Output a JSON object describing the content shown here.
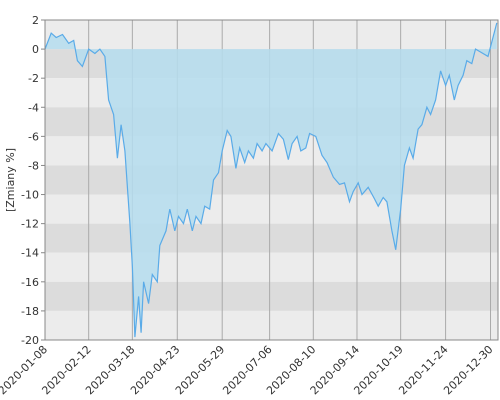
{
  "chart_data": {
    "type": "area",
    "y_label": "[Zmiany %]",
    "x": [
      "2020-01-08",
      "2020-01-13",
      "2020-01-17",
      "2020-01-22",
      "2020-01-27",
      "2020-01-31",
      "2020-02-03",
      "2020-02-07",
      "2020-02-12",
      "2020-02-17",
      "2020-02-21",
      "2020-02-25",
      "2020-02-28",
      "2020-03-03",
      "2020-03-06",
      "2020-03-09",
      "2020-03-12",
      "2020-03-16",
      "2020-03-18",
      "2020-03-20",
      "2020-03-23",
      "2020-03-25",
      "2020-03-27",
      "2020-03-31",
      "2020-04-03",
      "2020-04-07",
      "2020-04-09",
      "2020-04-14",
      "2020-04-17",
      "2020-04-21",
      "2020-04-24",
      "2020-04-28",
      "2020-05-01",
      "2020-05-05",
      "2020-05-08",
      "2020-05-12",
      "2020-05-15",
      "2020-05-19",
      "2020-05-22",
      "2020-05-26",
      "2020-05-29",
      "2020-06-02",
      "2020-06-05",
      "2020-06-09",
      "2020-06-12",
      "2020-06-16",
      "2020-06-19",
      "2020-06-23",
      "2020-06-26",
      "2020-06-30",
      "2020-07-03",
      "2020-07-08",
      "2020-07-13",
      "2020-07-17",
      "2020-07-21",
      "2020-07-24",
      "2020-07-28",
      "2020-07-31",
      "2020-08-04",
      "2020-08-07",
      "2020-08-12",
      "2020-08-17",
      "2020-08-21",
      "2020-08-26",
      "2020-08-31",
      "2020-09-04",
      "2020-09-08",
      "2020-09-11",
      "2020-09-15",
      "2020-09-18",
      "2020-09-23",
      "2020-09-28",
      "2020-10-01",
      "2020-10-05",
      "2020-10-08",
      "2020-10-12",
      "2020-10-15",
      "2020-10-19",
      "2020-10-22",
      "2020-10-26",
      "2020-10-29",
      "2020-11-02",
      "2020-11-05",
      "2020-11-09",
      "2020-11-12",
      "2020-11-16",
      "2020-11-20",
      "2020-11-24",
      "2020-11-27",
      "2020-12-01",
      "2020-12-04",
      "2020-12-08",
      "2020-12-11",
      "2020-12-15",
      "2020-12-18",
      "2020-12-22",
      "2020-12-28",
      "2021-01-04"
    ],
    "series": [
      {
        "color": "#5aabe8",
        "fill": "#b5ddef",
        "values": [
          0,
          1.1,
          0.8,
          1.0,
          0.4,
          0.6,
          -0.8,
          -1.2,
          0,
          -0.3,
          0,
          -0.5,
          -3.5,
          -4.5,
          -7.5,
          -5.2,
          -7,
          -12,
          -15,
          -19.8,
          -17,
          -19.5,
          -16,
          -17.5,
          -15.5,
          -16,
          -13.5,
          -12.5,
          -11,
          -12.5,
          -11.5,
          -12,
          -11,
          -12.5,
          -11.5,
          -12,
          -10.8,
          -11,
          -9,
          -8.5,
          -7,
          -5.6,
          -6,
          -8.2,
          -6.8,
          -7.8,
          -7,
          -7.5,
          -6.5,
          -7,
          -6.5,
          -7,
          -5.8,
          -6.2,
          -7.6,
          -6.5,
          -6,
          -7,
          -6.8,
          -5.8,
          -6,
          -7.3,
          -7.8,
          -8.8,
          -9.3,
          -9.2,
          -10.5,
          -9.8,
          -9.2,
          -10,
          -9.5,
          -10.3,
          -10.8,
          -10.2,
          -10.5,
          -12.5,
          -13.8,
          -11,
          -8,
          -6.8,
          -7.5,
          -5.5,
          -5.2,
          -4,
          -4.5,
          -3.5,
          -1.5,
          -2.5,
          -1.8,
          -3.5,
          -2.5,
          -1.8,
          -0.8,
          -1,
          0,
          -0.2,
          -0.5,
          1.8
        ]
      }
    ],
    "xlim": [
      "2020-01-08",
      "2021-01-05"
    ],
    "xticks": [
      "2020-01-08",
      "2020-02-12",
      "2020-03-18",
      "2020-04-23",
      "2020-05-29",
      "2020-07-06",
      "2020-08-10",
      "2020-09-14",
      "2020-10-19",
      "2020-11-24",
      "2020-12-30"
    ],
    "ylim": [
      -20,
      2
    ],
    "yticks": [
      2,
      0,
      -2,
      -4,
      -6,
      -8,
      -10,
      -12,
      -14,
      -16,
      -18,
      -20
    ],
    "band_colors": [
      "#ececec",
      "#dcdcdc"
    ]
  }
}
